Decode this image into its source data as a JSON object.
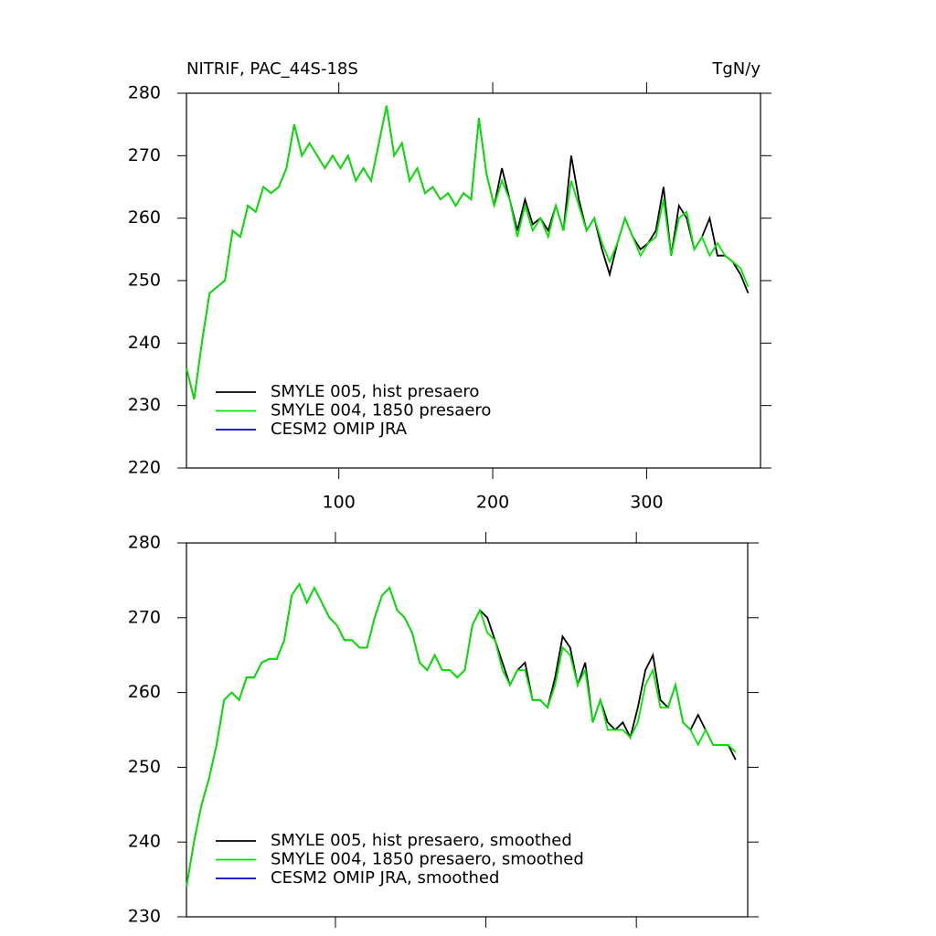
{
  "chart_data": [
    {
      "type": "line",
      "title": "NITRIF, PAC_44S-18S",
      "right_title": "TgN/y",
      "xlim": [
        1,
        374
      ],
      "ylim": [
        220,
        280
      ],
      "xticks": [
        100,
        200,
        300
      ],
      "yticks": [
        220,
        230,
        240,
        250,
        260,
        270,
        280
      ],
      "show_xtick_labels": true,
      "legend": "lower left",
      "x": [
        1,
        6,
        11,
        16,
        21,
        26,
        31,
        36,
        41,
        46,
        51,
        56,
        61,
        66,
        71,
        76,
        81,
        86,
        91,
        96,
        101,
        106,
        111,
        116,
        121,
        126,
        131,
        136,
        141,
        146,
        151,
        156,
        161,
        166,
        171,
        176,
        181,
        186,
        191,
        196,
        201,
        206,
        211,
        216,
        221,
        226,
        231,
        236,
        241,
        246,
        251,
        256,
        261,
        266,
        271,
        276,
        281,
        286,
        291,
        296,
        301,
        306,
        311,
        316,
        321,
        326,
        331,
        336,
        341,
        346,
        351,
        356,
        361,
        366
      ],
      "series": [
        {
          "name": "SMYLE 005, hist presaero",
          "color": "#000000",
          "values": [
            236,
            231,
            240,
            248,
            249,
            250,
            258,
            257,
            262,
            261,
            265,
            264,
            265,
            268,
            275,
            270,
            272,
            270,
            268,
            270,
            268,
            270,
            266,
            268,
            266,
            272,
            278,
            270,
            272,
            266,
            268,
            264,
            265,
            263,
            264,
            262,
            264,
            263,
            276,
            267,
            262,
            268,
            263,
            258,
            263,
            259,
            260,
            258,
            262,
            258,
            270,
            263,
            258,
            260,
            255,
            251,
            256,
            260,
            257,
            255,
            256,
            258,
            265,
            254,
            262,
            260,
            255,
            257,
            260,
            254,
            254,
            253,
            251,
            248
          ]
        },
        {
          "name": "SMYLE 004, 1850 presaero",
          "color": "#00e600",
          "values": [
            236,
            231,
            240,
            248,
            249,
            250,
            258,
            257,
            262,
            261,
            265,
            264,
            265,
            268,
            275,
            270,
            272,
            270,
            268,
            270,
            268,
            270,
            266,
            268,
            266,
            272,
            278,
            270,
            272,
            266,
            268,
            264,
            265,
            263,
            264,
            262,
            264,
            263,
            276,
            267,
            262,
            266,
            263,
            257,
            262,
            258,
            260,
            257,
            262,
            258,
            266,
            262,
            258,
            260,
            256,
            253,
            256,
            260,
            257,
            254,
            256,
            257,
            263,
            254,
            260,
            261,
            255,
            257,
            254,
            256,
            254,
            253,
            252,
            249
          ]
        },
        {
          "name": "CESM2 OMIP JRA",
          "color": "#0000cc",
          "values": [
            null,
            null,
            null,
            null,
            null,
            null,
            null,
            null,
            null,
            null,
            null,
            null,
            null,
            null,
            null,
            null,
            null,
            null,
            null,
            null,
            null,
            null,
            null,
            null,
            null,
            null,
            null,
            null,
            null,
            null,
            null,
            null,
            null,
            null,
            null,
            null,
            null,
            null,
            null,
            null,
            null,
            null,
            null,
            null,
            null,
            null,
            null,
            null,
            null,
            null,
            null,
            null,
            null,
            null,
            null,
            null,
            null,
            null,
            null,
            null,
            null,
            null,
            null,
            null,
            null,
            null,
            null,
            null,
            null,
            null,
            null,
            null,
            null,
            null
          ]
        }
      ]
    },
    {
      "type": "line",
      "xlim": [
        1,
        374
      ],
      "ylim": [
        230,
        280
      ],
      "xticks": [
        100,
        200,
        300
      ],
      "yticks": [
        230,
        240,
        250,
        260,
        270,
        280
      ],
      "show_xtick_labels": false,
      "legend": "lower left",
      "x": [
        1,
        6,
        11,
        16,
        21,
        26,
        31,
        36,
        41,
        46,
        51,
        56,
        61,
        66,
        71,
        76,
        81,
        86,
        91,
        96,
        101,
        106,
        111,
        116,
        121,
        126,
        131,
        136,
        141,
        146,
        151,
        156,
        161,
        166,
        171,
        176,
        181,
        186,
        191,
        196,
        201,
        206,
        211,
        216,
        221,
        226,
        231,
        236,
        241,
        246,
        251,
        256,
        261,
        266,
        271,
        276,
        281,
        286,
        291,
        296,
        301,
        306,
        311,
        316,
        321,
        326,
        331,
        336,
        341,
        346,
        351,
        356,
        361,
        366
      ],
      "series": [
        {
          "name": "SMYLE 005, hist presaero, smoothed",
          "color": "#000000",
          "values": [
            234,
            240,
            245,
            248.5,
            253,
            259,
            260,
            259,
            262,
            262,
            264,
            264.5,
            264.5,
            267,
            273,
            274.5,
            272,
            274,
            272,
            270,
            269,
            267,
            267,
            266,
            266,
            270,
            273,
            274,
            271,
            270,
            268,
            264,
            263,
            265,
            263,
            263,
            262,
            263,
            269,
            271,
            270,
            267,
            264,
            261,
            263,
            264,
            259,
            259,
            258,
            262,
            267.5,
            266,
            261,
            264,
            256,
            259,
            256,
            255,
            256,
            254,
            258,
            263,
            265,
            259,
            258,
            261,
            256,
            255,
            257,
            255,
            253,
            253,
            253,
            251
          ]
        },
        {
          "name": "SMYLE 004, 1850 presaero, smoothed",
          "color": "#00e600",
          "values": [
            234,
            240,
            245,
            248.5,
            253,
            259,
            260,
            259,
            262,
            262,
            264,
            264.5,
            264.5,
            267,
            273,
            274.5,
            272,
            274,
            272,
            270,
            269,
            267,
            267,
            266,
            266,
            270,
            273,
            274,
            271,
            270,
            268,
            264,
            263,
            265,
            263,
            263,
            262,
            263,
            269,
            271,
            268,
            267,
            263,
            261,
            263,
            263,
            259,
            259,
            258,
            261,
            266,
            265,
            261,
            263,
            256,
            259,
            255,
            255,
            255,
            254,
            256,
            261,
            263,
            258,
            258,
            261,
            256,
            255,
            253,
            255,
            253,
            253,
            253,
            252
          ]
        },
        {
          "name": "CESM2 OMIP JRA, smoothed",
          "color": "#0000cc",
          "values": [
            null,
            null,
            null,
            null,
            null,
            null,
            null,
            null,
            null,
            null,
            null,
            null,
            null,
            null,
            null,
            null,
            null,
            null,
            null,
            null,
            null,
            null,
            null,
            null,
            null,
            null,
            null,
            null,
            null,
            null,
            null,
            null,
            null,
            null,
            null,
            null,
            null,
            null,
            null,
            null,
            null,
            null,
            null,
            null,
            null,
            null,
            null,
            null,
            null,
            null,
            null,
            null,
            null,
            null,
            null,
            null,
            null,
            null,
            null,
            null,
            null,
            null,
            null,
            null,
            null,
            null,
            null,
            null,
            null,
            null,
            null,
            null,
            null,
            null
          ]
        }
      ]
    }
  ]
}
